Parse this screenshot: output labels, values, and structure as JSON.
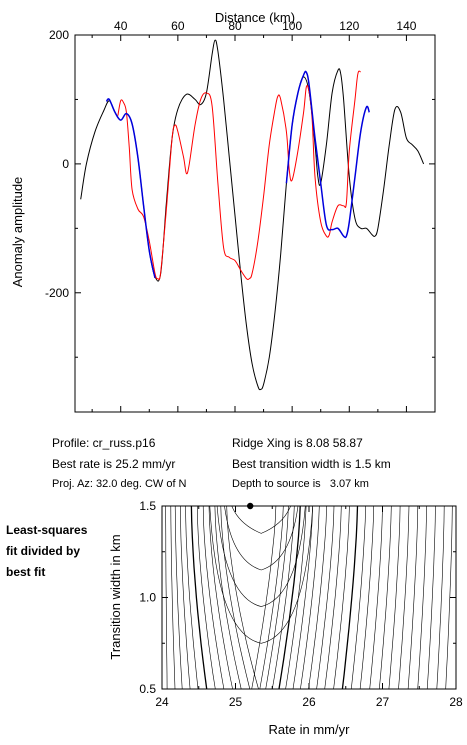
{
  "info": {
    "profile": "Profile: cr_russ.p16",
    "best_rate": "Best rate is 25.2 mm/yr",
    "proj_az": "Proj. Az: 32.0 deg. CW of N",
    "ridge_xing": "Ridge Xing is 8.08 58.87",
    "best_transition": "Best transition width is 1.5 km",
    "depth": "Depth to source is   3.07 km"
  },
  "side_label": [
    "Least-squares",
    "fit divided by",
    "best fit"
  ],
  "chart_data": [
    {
      "type": "line",
      "xlabel": "Distance (km)",
      "ylabel": "Anomaly amplitude",
      "xlim": [
        24,
        150
      ],
      "ylim": [
        -385,
        200
      ],
      "xticks": [
        40,
        60,
        80,
        100,
        120,
        140
      ],
      "yticks": [
        200,
        0,
        -200
      ],
      "x_axis_position": "top",
      "grid": false,
      "series": [
        {
          "color": "#000000",
          "points": [
            [
              26,
              -55
            ],
            [
              28,
              0
            ],
            [
              31,
              50
            ],
            [
              34,
              82
            ],
            [
              36,
              98
            ],
            [
              38,
              80
            ],
            [
              40,
              68
            ],
            [
              42,
              78
            ],
            [
              44,
              62
            ],
            [
              46,
              10
            ],
            [
              48,
              -65
            ],
            [
              50,
              -135
            ],
            [
              52,
              -175
            ],
            [
              54,
              -170
            ],
            [
              56,
              -60
            ],
            [
              58,
              40
            ],
            [
              60,
              85
            ],
            [
              63,
              108
            ],
            [
              66,
              100
            ],
            [
              68,
              92
            ],
            [
              70,
              110
            ],
            [
              72,
              170
            ],
            [
              73,
              192
            ],
            [
              74,
              175
            ],
            [
              76,
              100
            ],
            [
              78,
              10
            ],
            [
              80,
              -80
            ],
            [
              82,
              -170
            ],
            [
              84,
              -250
            ],
            [
              86,
              -310
            ],
            [
              88,
              -345
            ],
            [
              89,
              -350
            ],
            [
              90,
              -342
            ],
            [
              92,
              -300
            ],
            [
              94,
              -230
            ],
            [
              96,
              -140
            ],
            [
              98,
              -30
            ],
            [
              100,
              60
            ],
            [
              102,
              110
            ],
            [
              104,
              135
            ],
            [
              106,
              110
            ],
            [
              108,
              30
            ],
            [
              109,
              -20
            ],
            [
              110,
              -30
            ],
            [
              112,
              30
            ],
            [
              114,
              110
            ],
            [
              116,
              145
            ],
            [
              117,
              140
            ],
            [
              118,
              100
            ],
            [
              120,
              -20
            ],
            [
              122,
              -85
            ],
            [
              124,
              -100
            ],
            [
              126,
              -100
            ],
            [
              128,
              -110
            ],
            [
              129,
              -112
            ],
            [
              130,
              -100
            ],
            [
              132,
              -40
            ],
            [
              134,
              30
            ],
            [
              136,
              85
            ],
            [
              138,
              80
            ],
            [
              140,
              40
            ],
            [
              142,
              30
            ],
            [
              144,
              20
            ],
            [
              146,
              0
            ]
          ]
        },
        {
          "color": "#ff0000",
          "points": [
            [
              39,
              75
            ],
            [
              40,
              98
            ],
            [
              41,
              95
            ],
            [
              42,
              80
            ],
            [
              43,
              25
            ],
            [
              44,
              -40
            ],
            [
              46,
              -70
            ],
            [
              48,
              -82
            ],
            [
              50,
              -120
            ],
            [
              52,
              -170
            ],
            [
              53,
              -178
            ],
            [
              54,
              -168
            ],
            [
              56,
              -70
            ],
            [
              58,
              40
            ],
            [
              59,
              60
            ],
            [
              60,
              50
            ],
            [
              62,
              10
            ],
            [
              63,
              -15
            ],
            [
              64,
              0
            ],
            [
              66,
              60
            ],
            [
              68,
              100
            ],
            [
              70,
              110
            ],
            [
              72,
              90
            ],
            [
              74,
              -30
            ],
            [
              76,
              -130
            ],
            [
              78,
              -145
            ],
            [
              80,
              -150
            ],
            [
              82,
              -165
            ],
            [
              84,
              -178
            ],
            [
              85,
              -178
            ],
            [
              86,
              -170
            ],
            [
              88,
              -120
            ],
            [
              90,
              -50
            ],
            [
              92,
              30
            ],
            [
              94,
              85
            ],
            [
              95,
              105
            ],
            [
              96,
              100
            ],
            [
              98,
              50
            ],
            [
              99,
              -10
            ],
            [
              100,
              -25
            ],
            [
              102,
              20
            ],
            [
              104,
              80
            ],
            [
              105,
              120
            ],
            [
              106,
              110
            ],
            [
              107,
              70
            ],
            [
              108,
              -20
            ],
            [
              110,
              -90
            ],
            [
              112,
              -112
            ],
            [
              113,
              -110
            ],
            [
              114,
              -90
            ],
            [
              116,
              -65
            ],
            [
              118,
              -65
            ],
            [
              119,
              -60
            ],
            [
              120,
              20
            ],
            [
              122,
              100
            ],
            [
              123,
              140
            ],
            [
              124,
              143
            ]
          ]
        },
        {
          "color": "#0000dd",
          "points": [
            [
              35,
              97
            ],
            [
              36,
              100
            ],
            [
              38,
              80
            ],
            [
              40,
              68
            ],
            [
              42,
              78
            ],
            [
              44,
              62
            ],
            [
              46,
              10
            ],
            [
              48,
              -65
            ],
            [
              50,
              -135
            ],
            [
              52,
              -177
            ],
            [
              98,
              -30
            ],
            [
              100,
              60
            ],
            [
              102,
              110
            ],
            [
              104,
              138
            ],
            [
              105,
              142
            ],
            [
              106,
              120
            ],
            [
              108,
              40
            ],
            [
              110,
              -30
            ],
            [
              112,
              -95
            ],
            [
              114,
              -102
            ],
            [
              116,
              -100
            ],
            [
              118,
              -112
            ],
            [
              119,
              -112
            ],
            [
              120,
              -90
            ],
            [
              122,
              -20
            ],
            [
              124,
              50
            ],
            [
              126,
              88
            ],
            [
              127,
              80
            ]
          ]
        }
      ]
    },
    {
      "type": "contour",
      "xlabel": "Rate in mm/yr",
      "ylabel": "Transition width in km",
      "xlim": [
        24,
        28
      ],
      "ylim": [
        0.5,
        1.5
      ],
      "xticks": [
        24,
        25,
        26,
        27,
        28
      ],
      "yticks": [
        0.5,
        1.0,
        1.5
      ],
      "best_fit": {
        "rate": 25.2,
        "width": 1.5
      }
    }
  ]
}
